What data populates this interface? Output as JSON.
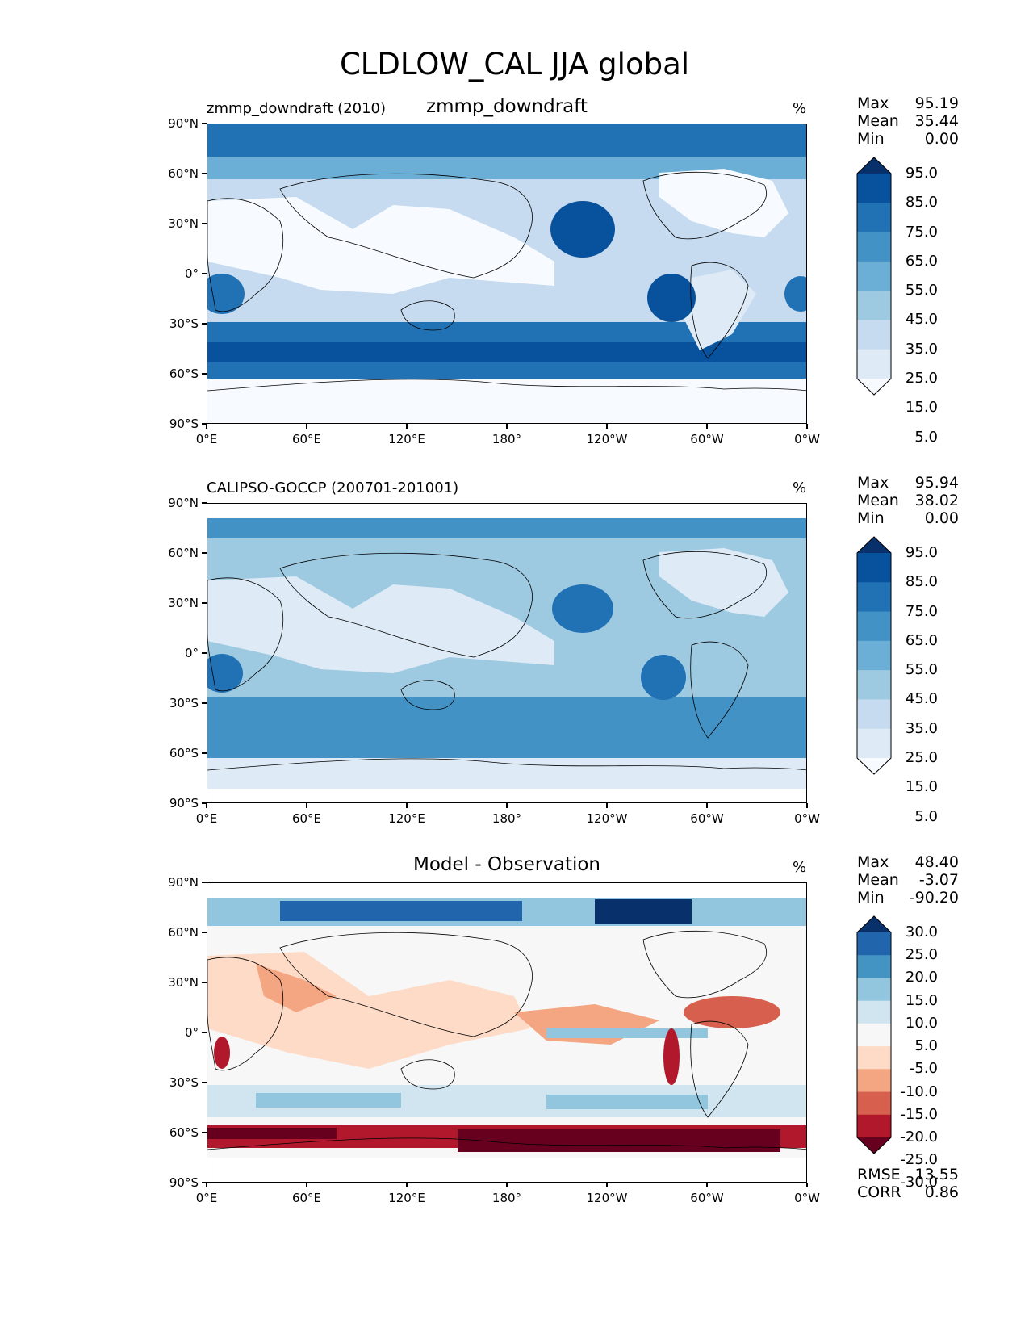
{
  "title": "CLDLOW_CAL JJA global",
  "lat_ticks": [
    "90°N",
    "60°N",
    "30°N",
    "0°",
    "30°S",
    "60°S",
    "90°S"
  ],
  "lon_ticks": [
    "0°E",
    "60°E",
    "120°E",
    "180°",
    "120°W",
    "60°W",
    "0°W"
  ],
  "panels": [
    {
      "left_title": "zmmp_downdraft (2010)",
      "center_title": "zmmp_downdraft",
      "units": "%",
      "stats": [
        {
          "label": "Max",
          "value": "95.19"
        },
        {
          "label": "Mean",
          "value": "35.44"
        },
        {
          "label": "Min",
          "value": "0.00"
        }
      ],
      "colorbar": {
        "labels": [
          "95.0",
          "85.0",
          "75.0",
          "65.0",
          "55.0",
          "45.0",
          "35.0",
          "25.0",
          "15.0",
          "5.0"
        ],
        "colors": [
          "#08306b",
          "#08519c",
          "#2171b5",
          "#4292c6",
          "#6baed6",
          "#9ecae1",
          "#c6dbef",
          "#deebf7",
          "#f7fbff"
        ]
      }
    },
    {
      "left_title": "CALIPSO-GOCCP (200701-201001)",
      "center_title": "",
      "units": "%",
      "stats": [
        {
          "label": "Max",
          "value": "95.94"
        },
        {
          "label": "Mean",
          "value": "38.02"
        },
        {
          "label": "Min",
          "value": "0.00"
        }
      ],
      "colorbar": {
        "labels": [
          "95.0",
          "85.0",
          "75.0",
          "65.0",
          "55.0",
          "45.0",
          "35.0",
          "25.0",
          "15.0",
          "5.0"
        ],
        "colors": [
          "#08306b",
          "#08519c",
          "#2171b5",
          "#4292c6",
          "#6baed6",
          "#9ecae1",
          "#c6dbef",
          "#deebf7",
          "#f7fbff"
        ]
      }
    },
    {
      "left_title": "",
      "center_title": "Model - Observation",
      "units": "%",
      "stats": [
        {
          "label": "Max",
          "value": "48.40"
        },
        {
          "label": "Mean",
          "value": "-3.07"
        },
        {
          "label": "Min",
          "value": "-90.20"
        }
      ],
      "extra_stats": [
        {
          "label": "RMSE",
          "value": "13.55"
        },
        {
          "label": "CORR",
          "value": "0.86"
        }
      ],
      "colorbar": {
        "labels": [
          "30.0",
          "25.0",
          "20.0",
          "15.0",
          "10.0",
          "5.0",
          "-5.0",
          "-10.0",
          "-15.0",
          "-20.0",
          "-25.0",
          "-30.0"
        ],
        "colors": [
          "#08306b",
          "#2166ac",
          "#4393c3",
          "#92c5de",
          "#d1e5f0",
          "#f7f7f7",
          "#fddbc7",
          "#f4a582",
          "#d6604d",
          "#b2182b",
          "#67001f"
        ]
      }
    }
  ]
}
